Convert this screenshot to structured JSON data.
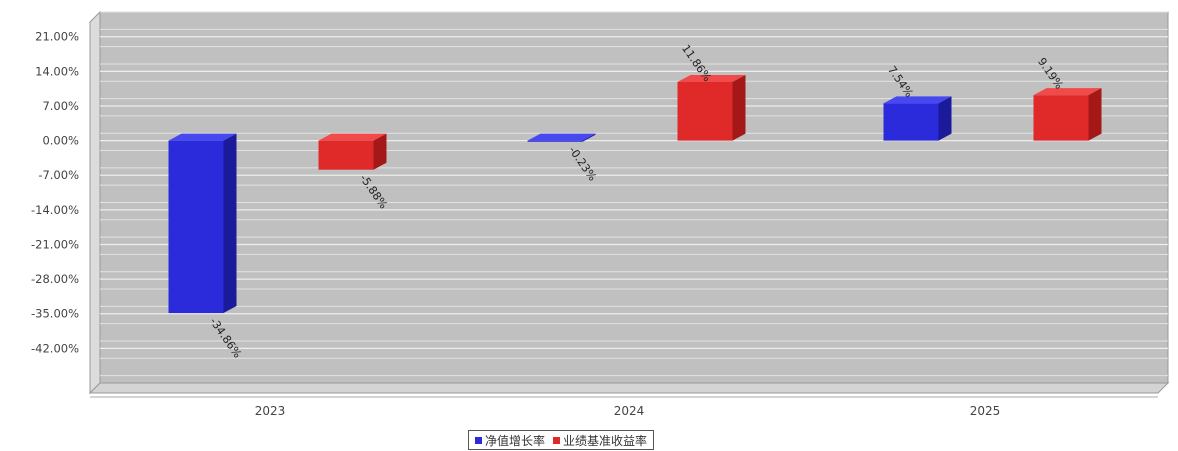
{
  "chart_data": {
    "type": "bar",
    "categories": [
      "2023",
      "2024",
      "2025"
    ],
    "series": [
      {
        "name": "净值增长率",
        "values": [
          -34.86,
          -0.23,
          7.54
        ],
        "labels": [
          "-34.86%",
          "-0.23%",
          "7.54%"
        ]
      },
      {
        "name": "业绩基准收益率",
        "values": [
          -5.88,
          11.86,
          9.19
        ],
        "labels": [
          "-5.88%",
          "11.86%",
          "9.19%"
        ]
      }
    ],
    "yticks": [
      21,
      14,
      7,
      0,
      -7,
      -14,
      -21,
      -28,
      -35,
      -42
    ],
    "ytick_labels": [
      "21.00%",
      "14.00%",
      "7.00%",
      "0.00%",
      "-7.00%",
      "-14.00%",
      "-21.00%",
      "-28.00%",
      "-35.00%",
      "-42.00%"
    ],
    "ylim": [
      -49,
      26
    ],
    "grid": true,
    "legend_position": "bottom-center",
    "title": "",
    "xlabel": "",
    "ylabel": ""
  },
  "colors": {
    "series": [
      "#2b2bdc",
      "#e02a2a"
    ],
    "series_side": [
      "#1a1a9a",
      "#a51818"
    ],
    "series_top": [
      "#4848f0",
      "#f04a4a"
    ],
    "plot_background": "#c0c0c0"
  }
}
